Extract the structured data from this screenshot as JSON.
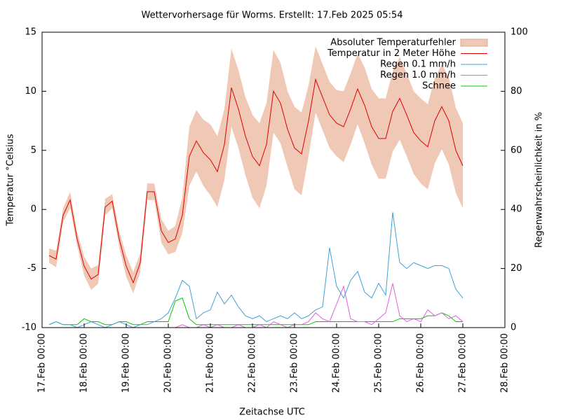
{
  "chart_data": {
    "type": "line",
    "title": "Wettervorhersage für Worms. Erstellt: 17.Feb 2025 05:54",
    "xlabel": "Zeitachse UTC",
    "ylabel": "Temperatur °Celsius",
    "y2label": "Regenwahrscheinlichkeit in %",
    "x": [
      4,
      8,
      12,
      16,
      20,
      24,
      28,
      32,
      36,
      40,
      44,
      48,
      52,
      56,
      60,
      64,
      68,
      72,
      76,
      80,
      84,
      88,
      92,
      96,
      100,
      104,
      108,
      112,
      116,
      120,
      124,
      128,
      132,
      136,
      140,
      144,
      148,
      152,
      156,
      160,
      164,
      168,
      172,
      176,
      180,
      184,
      188,
      192,
      196,
      200,
      204,
      208,
      212,
      216,
      220,
      224,
      228,
      232,
      236,
      240
    ],
    "xlim": [
      0,
      264
    ],
    "xticks": [
      {
        "value": 0,
        "label": "17.Feb 00:00"
      },
      {
        "value": 24,
        "label": "18.Feb 00:00"
      },
      {
        "value": 48,
        "label": "19.Feb 00:00"
      },
      {
        "value": 72,
        "label": "20.Feb 00:00"
      },
      {
        "value": 96,
        "label": "21.Feb 00:00"
      },
      {
        "value": 120,
        "label": "22.Feb 00:00"
      },
      {
        "value": 144,
        "label": "23.Feb 00:00"
      },
      {
        "value": 168,
        "label": "24.Feb 00:00"
      },
      {
        "value": 192,
        "label": "25.Feb 00:00"
      },
      {
        "value": 216,
        "label": "26.Feb 00:00"
      },
      {
        "value": 240,
        "label": "27.Feb 00:00"
      },
      {
        "value": 264,
        "label": "28.Feb 00:00"
      }
    ],
    "ylim": [
      -10,
      15
    ],
    "yticks": [
      -10,
      -5,
      0,
      5,
      10,
      15
    ],
    "y2lim": [
      0,
      100
    ],
    "y2ticks": [
      0,
      20,
      40,
      60,
      80,
      100
    ],
    "series": [
      {
        "name": "Temperatur in 2 Meter Höhe",
        "color": "#e00000",
        "error_name": "Absoluter Temperaturfehler",
        "error_color": "#f0c8b6",
        "values": [
          -3.9,
          -4.2,
          -0.5,
          0.8,
          -2.5,
          -4.8,
          -5.9,
          -5.5,
          0.2,
          0.7,
          -2.5,
          -4.8,
          -6.2,
          -4.5,
          1.5,
          1.5,
          -1.8,
          -2.8,
          -2.5,
          -0.5,
          4.5,
          5.8,
          4.8,
          4.2,
          3.2,
          5.5,
          10.3,
          8.5,
          6.2,
          4.5,
          3.7,
          5.5,
          10.0,
          9.0,
          6.8,
          5.2,
          4.7,
          7.5,
          11.0,
          9.5,
          8.0,
          7.3,
          7.0,
          8.5,
          10.2,
          8.8,
          7.0,
          6.0,
          6.0,
          8.3,
          9.4,
          8.0,
          6.5,
          5.8,
          5.3,
          7.5,
          8.7,
          7.5,
          5.0,
          3.7
        ],
        "error": [
          0.6,
          0.7,
          0.6,
          0.7,
          0.6,
          0.8,
          0.9,
          0.8,
          0.7,
          0.6,
          0.7,
          0.9,
          0.9,
          0.8,
          0.7,
          0.7,
          1.0,
          1.0,
          1.1,
          1.5,
          2.5,
          2.6,
          2.8,
          3.0,
          3.0,
          3.0,
          3.3,
          3.3,
          3.3,
          3.5,
          3.6,
          3.5,
          3.5,
          3.4,
          3.2,
          3.5,
          3.5,
          3.0,
          2.8,
          2.8,
          2.8,
          2.8,
          3.0,
          3.0,
          3.0,
          3.2,
          3.2,
          3.4,
          3.4,
          3.4,
          3.5,
          3.5,
          3.5,
          3.6,
          3.6,
          3.6,
          3.6,
          3.7,
          3.6,
          3.6
        ]
      },
      {
        "name": "Regen 0.1 mm/h",
        "color": "#3fa0d8",
        "axis": "y2",
        "values": [
          1,
          2,
          1,
          1,
          0,
          1,
          2,
          1,
          0,
          1,
          2,
          1,
          0,
          1,
          1,
          2,
          3,
          5,
          10,
          16,
          14,
          3,
          5,
          6,
          12,
          8,
          11,
          7,
          4,
          3,
          4,
          2,
          3,
          4,
          3,
          5,
          3,
          4,
          6,
          7,
          27,
          14,
          10,
          16,
          19,
          12,
          10,
          15,
          11,
          39,
          22,
          20,
          22,
          21,
          20,
          21,
          21,
          20,
          13,
          10
        ]
      },
      {
        "name": "Regen 1.0 mm/h",
        "color": "#e060e0",
        "axis": "y2",
        "values": [
          0,
          0,
          0,
          0,
          0,
          0,
          0,
          0,
          0,
          0,
          0,
          0,
          0,
          0,
          0,
          0,
          0,
          0,
          0,
          1,
          0,
          0,
          1,
          0,
          1,
          0,
          0,
          1,
          0,
          0,
          1,
          0,
          2,
          1,
          0,
          1,
          1,
          2,
          5,
          3,
          2,
          8,
          14,
          3,
          2,
          2,
          1,
          3,
          5,
          15,
          4,
          2,
          3,
          2,
          6,
          4,
          5,
          3,
          4,
          2
        ]
      },
      {
        "name": "Schnee",
        "color": "#00c800",
        "axis": "y2",
        "values": [
          1,
          2,
          1,
          1,
          1,
          3,
          2,
          2,
          1,
          1,
          2,
          2,
          1,
          1,
          2,
          2,
          2,
          2,
          9,
          10,
          3,
          1,
          1,
          1,
          1,
          1,
          1,
          1,
          1,
          1,
          1,
          1,
          1,
          1,
          1,
          1,
          1,
          1,
          2,
          2,
          2,
          2,
          2,
          2,
          2,
          2,
          2,
          2,
          2,
          2,
          3,
          3,
          3,
          3,
          4,
          4,
          5,
          4,
          2,
          2
        ]
      }
    ]
  }
}
